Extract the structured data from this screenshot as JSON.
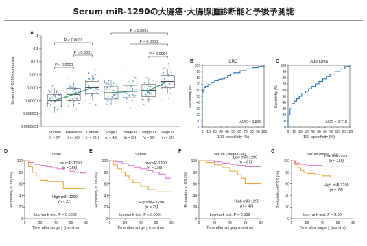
{
  "page": {
    "title": "Serum miR-1290の大腸癌･大腸腺腫診断能と予後予測能"
  },
  "chart_data": [
    {
      "panel": "A",
      "type": "scatter",
      "ylabel": "Serum miR-1290 expression",
      "yticks": [
        "1",
        "0.1",
        "0.01",
        "0.001",
        "0.0001",
        "0.00001",
        "0.000001",
        "0.0000001"
      ],
      "groups": [
        {
          "name": "Normal",
          "n": "(n = 57)",
          "median": 1e-05
        },
        {
          "name": "Adenoma",
          "n": "(n = 56)",
          "median": 3e-05
        },
        {
          "name": "Cancer",
          "n": "(n = 211)",
          "median": 0.0001
        },
        {
          "name": "Stage I",
          "n": "(n = 45)",
          "median": 4e-05
        },
        {
          "name": "Stage II",
          "n": "(n = 59)",
          "median": 5e-05
        },
        {
          "name": "Stage III",
          "n": "(n = 55)",
          "median": 6e-05
        },
        {
          "name": "Stage IV",
          "n": "(n = 52)",
          "median": 0.0003
        }
      ],
      "pvalues": [
        "P < 0.0001",
        "P < 0.0001",
        "P < 0.0001",
        "P < 0.0001",
        "P = 0.0003",
        "P = 0.0004"
      ]
    },
    {
      "panel": "B",
      "type": "line",
      "title": "CRC",
      "xlabel": "100–specificity (%)",
      "ylabel": "Sensitivity (%)",
      "ticks": [
        "0",
        "10",
        "20",
        "30",
        "40",
        "50",
        "60",
        "70",
        "80",
        "90",
        "100"
      ],
      "auc": "AUC = 0.830",
      "x": [
        0,
        1,
        3,
        5,
        9,
        14,
        20,
        26,
        30,
        36,
        41,
        46,
        51,
        61,
        71,
        81,
        91,
        100
      ],
      "y": [
        55,
        60,
        64,
        66,
        69,
        72,
        75,
        77,
        78,
        80,
        84,
        86,
        88,
        91,
        94,
        96,
        98,
        100
      ]
    },
    {
      "panel": "C",
      "type": "line",
      "title": "Adenoma",
      "xlabel": "100–specificity (%)",
      "ylabel": "Sensitivity (%)",
      "ticks": [
        "0",
        "10",
        "20",
        "30",
        "40",
        "50",
        "60",
        "70",
        "80",
        "90",
        "100"
      ],
      "auc": "AUC = 0.718",
      "x": [
        0,
        3,
        6,
        10,
        14,
        18,
        22,
        28,
        33,
        38,
        44,
        50,
        56,
        62,
        68,
        76,
        84,
        92,
        100
      ],
      "y": [
        20,
        30,
        38,
        42,
        46,
        50,
        55,
        58,
        62,
        66,
        70,
        74,
        78,
        82,
        86,
        90,
        94,
        98,
        100
      ]
    },
    {
      "panel": "D",
      "type": "line",
      "title": "Tissue",
      "xlabel": "Time after surgery (months)",
      "ylabel": "Probability of OS (%)",
      "xticks": [
        "0",
        "20",
        "40",
        "60",
        "80"
      ],
      "yticks": [
        "0",
        "20",
        "40",
        "60",
        "80",
        "100"
      ],
      "series": [
        {
          "name": "Low miR-1290",
          "n": "(n = 158)",
          "color": "#d977c9",
          "x": [
            0,
            6,
            12,
            20,
            28,
            35,
            42,
            50,
            58,
            65,
            72,
            80
          ],
          "y": [
            100,
            97,
            94,
            92,
            90,
            88,
            86,
            84,
            82,
            80,
            79,
            79
          ]
        },
        {
          "name": "High miR-1290",
          "n": "(n = 21)",
          "color": "#e9a43c",
          "x": [
            0,
            5,
            10,
            15,
            20,
            30,
            40,
            50,
            60,
            70,
            80
          ],
          "y": [
            100,
            90,
            80,
            72,
            66,
            64,
            64,
            52,
            52,
            52,
            52
          ]
        }
      ],
      "logrank": "Log-rank test: P = 0.0082"
    },
    {
      "panel": "E",
      "type": "line",
      "title": "Serum",
      "xlabel": "Time after surgery (months)",
      "ylabel": "Probability of OS (%)",
      "xticks": [
        "0",
        "20",
        "40",
        "60",
        "80"
      ],
      "yticks": [
        "0",
        "20",
        "40",
        "60",
        "80",
        "100"
      ],
      "series": [
        {
          "name": "Low miR-1290",
          "n": "(n = 136)",
          "color": "#d977c9",
          "x": [
            0,
            8,
            16,
            24,
            32,
            40,
            48,
            56,
            64,
            72,
            80
          ],
          "y": [
            100,
            98,
            95,
            92,
            89,
            86,
            83,
            80,
            77,
            70,
            70
          ]
        },
        {
          "name": "High miR-1290",
          "n": "(n = 75)",
          "color": "#e9a43c",
          "x": [
            0,
            5,
            10,
            15,
            20,
            25,
            30,
            40,
            50,
            60,
            70,
            80
          ],
          "y": [
            100,
            93,
            86,
            80,
            74,
            68,
            62,
            56,
            50,
            46,
            46,
            46
          ]
        }
      ],
      "logrank": "Log-rank test: P < 0.0001"
    },
    {
      "panel": "F",
      "type": "line",
      "title": "Serum (stage II–III)",
      "xlabel": "Time after surgery (months)",
      "ylabel": "Probability of OS (%)",
      "xticks": [
        "0",
        "20",
        "40",
        "60",
        "80"
      ],
      "yticks": [
        "0",
        "20",
        "40",
        "60",
        "80",
        "100"
      ],
      "series": [
        {
          "name": "Low miR-1290",
          "n": "(n = 67)",
          "color": "#d977c9",
          "x": [
            0,
            10,
            20,
            30,
            40,
            50,
            60,
            70,
            80
          ],
          "y": [
            100,
            100,
            98,
            96,
            94,
            92,
            90,
            90,
            90
          ]
        },
        {
          "name": "High miR-1290",
          "n": "(n = 47)",
          "color": "#e9a43c",
          "x": [
            0,
            10,
            20,
            30,
            40,
            50,
            55,
            60,
            70,
            80
          ],
          "y": [
            100,
            97,
            93,
            88,
            82,
            76,
            70,
            60,
            60,
            60
          ]
        }
      ],
      "logrank": "Log-rank test: P = 0.039"
    },
    {
      "panel": "G",
      "type": "line",
      "title": "Serum (stage I–III)",
      "xlabel": "Time after surgery (months)",
      "ylabel": "Probability of DFS (%)",
      "xticks": [
        "0",
        "20",
        "40",
        "60",
        "80"
      ],
      "yticks": [
        "0",
        "20",
        "40",
        "60",
        "80",
        "100"
      ],
      "series": [
        {
          "name": "Low miR-1290",
          "n": "(n = 115)",
          "color": "#d977c9",
          "x": [
            0,
            5,
            10,
            20,
            30,
            40,
            50,
            60,
            70,
            80
          ],
          "y": [
            100,
            96,
            94,
            92,
            92,
            91,
            91,
            91,
            91,
            91
          ]
        },
        {
          "name": "High miR-1290",
          "n": "(n = 44)",
          "color": "#e9a43c",
          "x": [
            0,
            4,
            8,
            12,
            16,
            20,
            30,
            40,
            50,
            60,
            70,
            80
          ],
          "y": [
            100,
            94,
            88,
            83,
            80,
            78,
            76,
            74,
            72,
            72,
            72,
            72
          ]
        }
      ],
      "logrank": "Log-rank test: P = 0.05"
    }
  ]
}
